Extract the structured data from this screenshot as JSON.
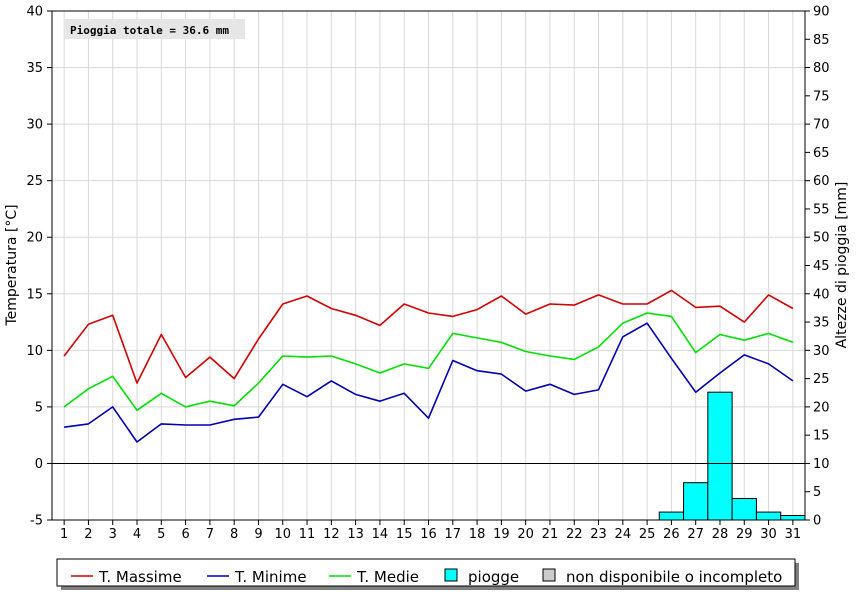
{
  "chart_data": {
    "type": "line",
    "annotation": "Pioggia totale = 36.6 mm",
    "ylabel": "Temperatura [°C]",
    "y2label": "Altezze di pioggia [mm]",
    "ylim": [
      -5,
      40
    ],
    "y_ticks": [
      "-5",
      "0",
      "5",
      "10",
      "15",
      "20",
      "25",
      "30",
      "35",
      "40"
    ],
    "y2lim": [
      0,
      90
    ],
    "y2_ticks": [
      "0",
      "5",
      "10",
      "15",
      "20",
      "25",
      "30",
      "35",
      "40",
      "45",
      "50",
      "55",
      "60",
      "65",
      "70",
      "75",
      "80",
      "85",
      "90"
    ],
    "categories": [
      "1",
      "2",
      "3",
      "4",
      "5",
      "6",
      "7",
      "8",
      "9",
      "10",
      "11",
      "12",
      "13",
      "14",
      "15",
      "16",
      "17",
      "18",
      "19",
      "20",
      "21",
      "22",
      "23",
      "24",
      "25",
      "26",
      "27",
      "28",
      "29",
      "30",
      "31"
    ],
    "grid": true,
    "legend_position": "bottom",
    "series": [
      {
        "name": "T. Massime",
        "color": "#d40000",
        "axis": "left",
        "kind": "line",
        "values": [
          9.5,
          12.3,
          13.1,
          7.1,
          11.4,
          7.6,
          9.4,
          7.5,
          11.0,
          14.1,
          14.8,
          13.7,
          13.1,
          12.2,
          14.1,
          13.3,
          13.0,
          13.6,
          14.8,
          13.2,
          14.1,
          14.0,
          14.9,
          14.1,
          14.1,
          15.3,
          13.8,
          13.9,
          12.5,
          14.9,
          13.7
        ]
      },
      {
        "name": "T. Minime",
        "color": "#0000b4",
        "axis": "left",
        "kind": "line",
        "values": [
          3.2,
          3.5,
          5.0,
          1.9,
          3.5,
          3.4,
          3.4,
          3.9,
          4.1,
          7.0,
          5.9,
          7.3,
          6.1,
          5.5,
          6.2,
          4.0,
          9.1,
          8.2,
          7.9,
          6.4,
          7.0,
          6.1,
          6.5,
          11.2,
          12.4,
          9.3,
          6.3,
          8.0,
          9.6,
          8.8,
          7.3
        ]
      },
      {
        "name": "T. Medie",
        "color": "#00e000",
        "axis": "left",
        "kind": "line",
        "values": [
          5.0,
          6.6,
          7.7,
          4.7,
          6.2,
          5.0,
          5.5,
          5.1,
          7.1,
          9.5,
          9.4,
          9.5,
          8.8,
          8.0,
          8.8,
          8.4,
          11.5,
          11.1,
          10.7,
          9.9,
          9.5,
          9.2,
          10.3,
          12.4,
          13.3,
          13.0,
          9.8,
          11.4,
          10.9,
          11.5,
          10.7
        ]
      },
      {
        "name": "piogge",
        "color": "#00ffff",
        "axis": "right",
        "kind": "bar",
        "values": [
          0,
          0,
          0,
          0,
          0,
          0,
          0,
          0,
          0,
          0,
          0,
          0,
          0,
          0,
          0,
          0,
          0,
          0,
          0,
          0,
          0,
          0,
          0,
          0,
          0,
          1.4,
          6.6,
          22.6,
          3.8,
          1.4,
          0.8
        ]
      }
    ],
    "missing_legend": {
      "name": "non disponibile o incompleto",
      "color": "#cccccc"
    }
  }
}
